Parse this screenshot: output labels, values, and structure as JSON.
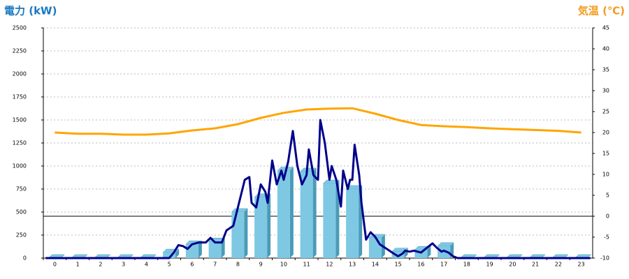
{
  "chart_data": {
    "type": "combo",
    "y_title": "電力 (kW)",
    "y2_title": "気温 (℃)",
    "categories": [
      "0",
      "1",
      "2",
      "3",
      "4",
      "5",
      "6",
      "7",
      "8",
      "9",
      "10",
      "11",
      "12",
      "13",
      "14",
      "15",
      "16",
      "17",
      "18",
      "19",
      "20",
      "21",
      "22",
      "23"
    ],
    "ylim": [
      0,
      2500
    ],
    "yticks": [
      0,
      250,
      500,
      750,
      1000,
      1250,
      1500,
      1750,
      2000,
      2250,
      2500
    ],
    "y2lim": [
      -10,
      45
    ],
    "y2ticks": [
      -10,
      -5,
      0,
      5,
      10,
      15,
      20,
      25,
      30,
      35,
      40,
      45
    ],
    "grid": true,
    "y2_zero_line": true,
    "series": [
      {
        "type": "bar",
        "color": "#7ec8e3",
        "side_color": "#4a9bb8",
        "values": [
          0,
          0,
          0,
          0,
          0,
          60,
          150,
          180,
          500,
          660,
          950,
          940,
          810,
          750,
          220,
          70,
          90,
          130,
          0,
          0,
          0,
          0,
          0,
          0
        ]
      },
      {
        "type": "line",
        "color": "#00008b",
        "x": [
          -0.4,
          0,
          1,
          2,
          3,
          4,
          5,
          5.2,
          5.4,
          5.6,
          5.8,
          6,
          6.3,
          6.6,
          6.8,
          7,
          7.3,
          7.5,
          7.8,
          8,
          8.3,
          8.5,
          8.6,
          8.8,
          9,
          9.2,
          9.3,
          9.5,
          9.7,
          9.9,
          10,
          10.2,
          10.4,
          10.6,
          10.8,
          11,
          11.1,
          11.3,
          11.5,
          11.6,
          11.8,
          12,
          12.1,
          12.3,
          12.5,
          12.6,
          12.8,
          12.9,
          13,
          13.1,
          13.3,
          13.4,
          13.6,
          13.8,
          14,
          14.2,
          14.5,
          14.8,
          15,
          15.2,
          15.3,
          15.5,
          15.7,
          16,
          16.2,
          16.5,
          16.7,
          16.9,
          17,
          17.2,
          17.4,
          17.6,
          18,
          19,
          20,
          21,
          22,
          23,
          23.4
        ],
        "values": [
          0,
          0,
          0,
          0,
          0,
          0,
          0,
          60,
          140,
          130,
          100,
          150,
          170,
          170,
          220,
          170,
          170,
          300,
          350,
          550,
          850,
          880,
          600,
          550,
          800,
          720,
          600,
          1060,
          800,
          950,
          850,
          1050,
          1380,
          1000,
          800,
          900,
          1180,
          900,
          850,
          1500,
          1250,
          850,
          1000,
          850,
          560,
          950,
          750,
          850,
          850,
          1230,
          900,
          600,
          200,
          280,
          230,
          150,
          100,
          50,
          20,
          50,
          80,
          70,
          80,
          60,
          100,
          160,
          110,
          70,
          80,
          60,
          20,
          0,
          0,
          0,
          0,
          0,
          0,
          0,
          0
        ]
      },
      {
        "type": "line",
        "color": "#ffa500",
        "axis": "y2",
        "values": [
          20,
          19.7,
          19.7,
          19.5,
          19.5,
          19.8,
          20.5,
          21,
          22,
          23.5,
          24.7,
          25.5,
          25.7,
          25.8,
          24.5,
          23,
          21.8,
          21.5,
          21.3,
          21,
          20.8,
          20.6,
          20.4,
          20
        ]
      }
    ]
  }
}
